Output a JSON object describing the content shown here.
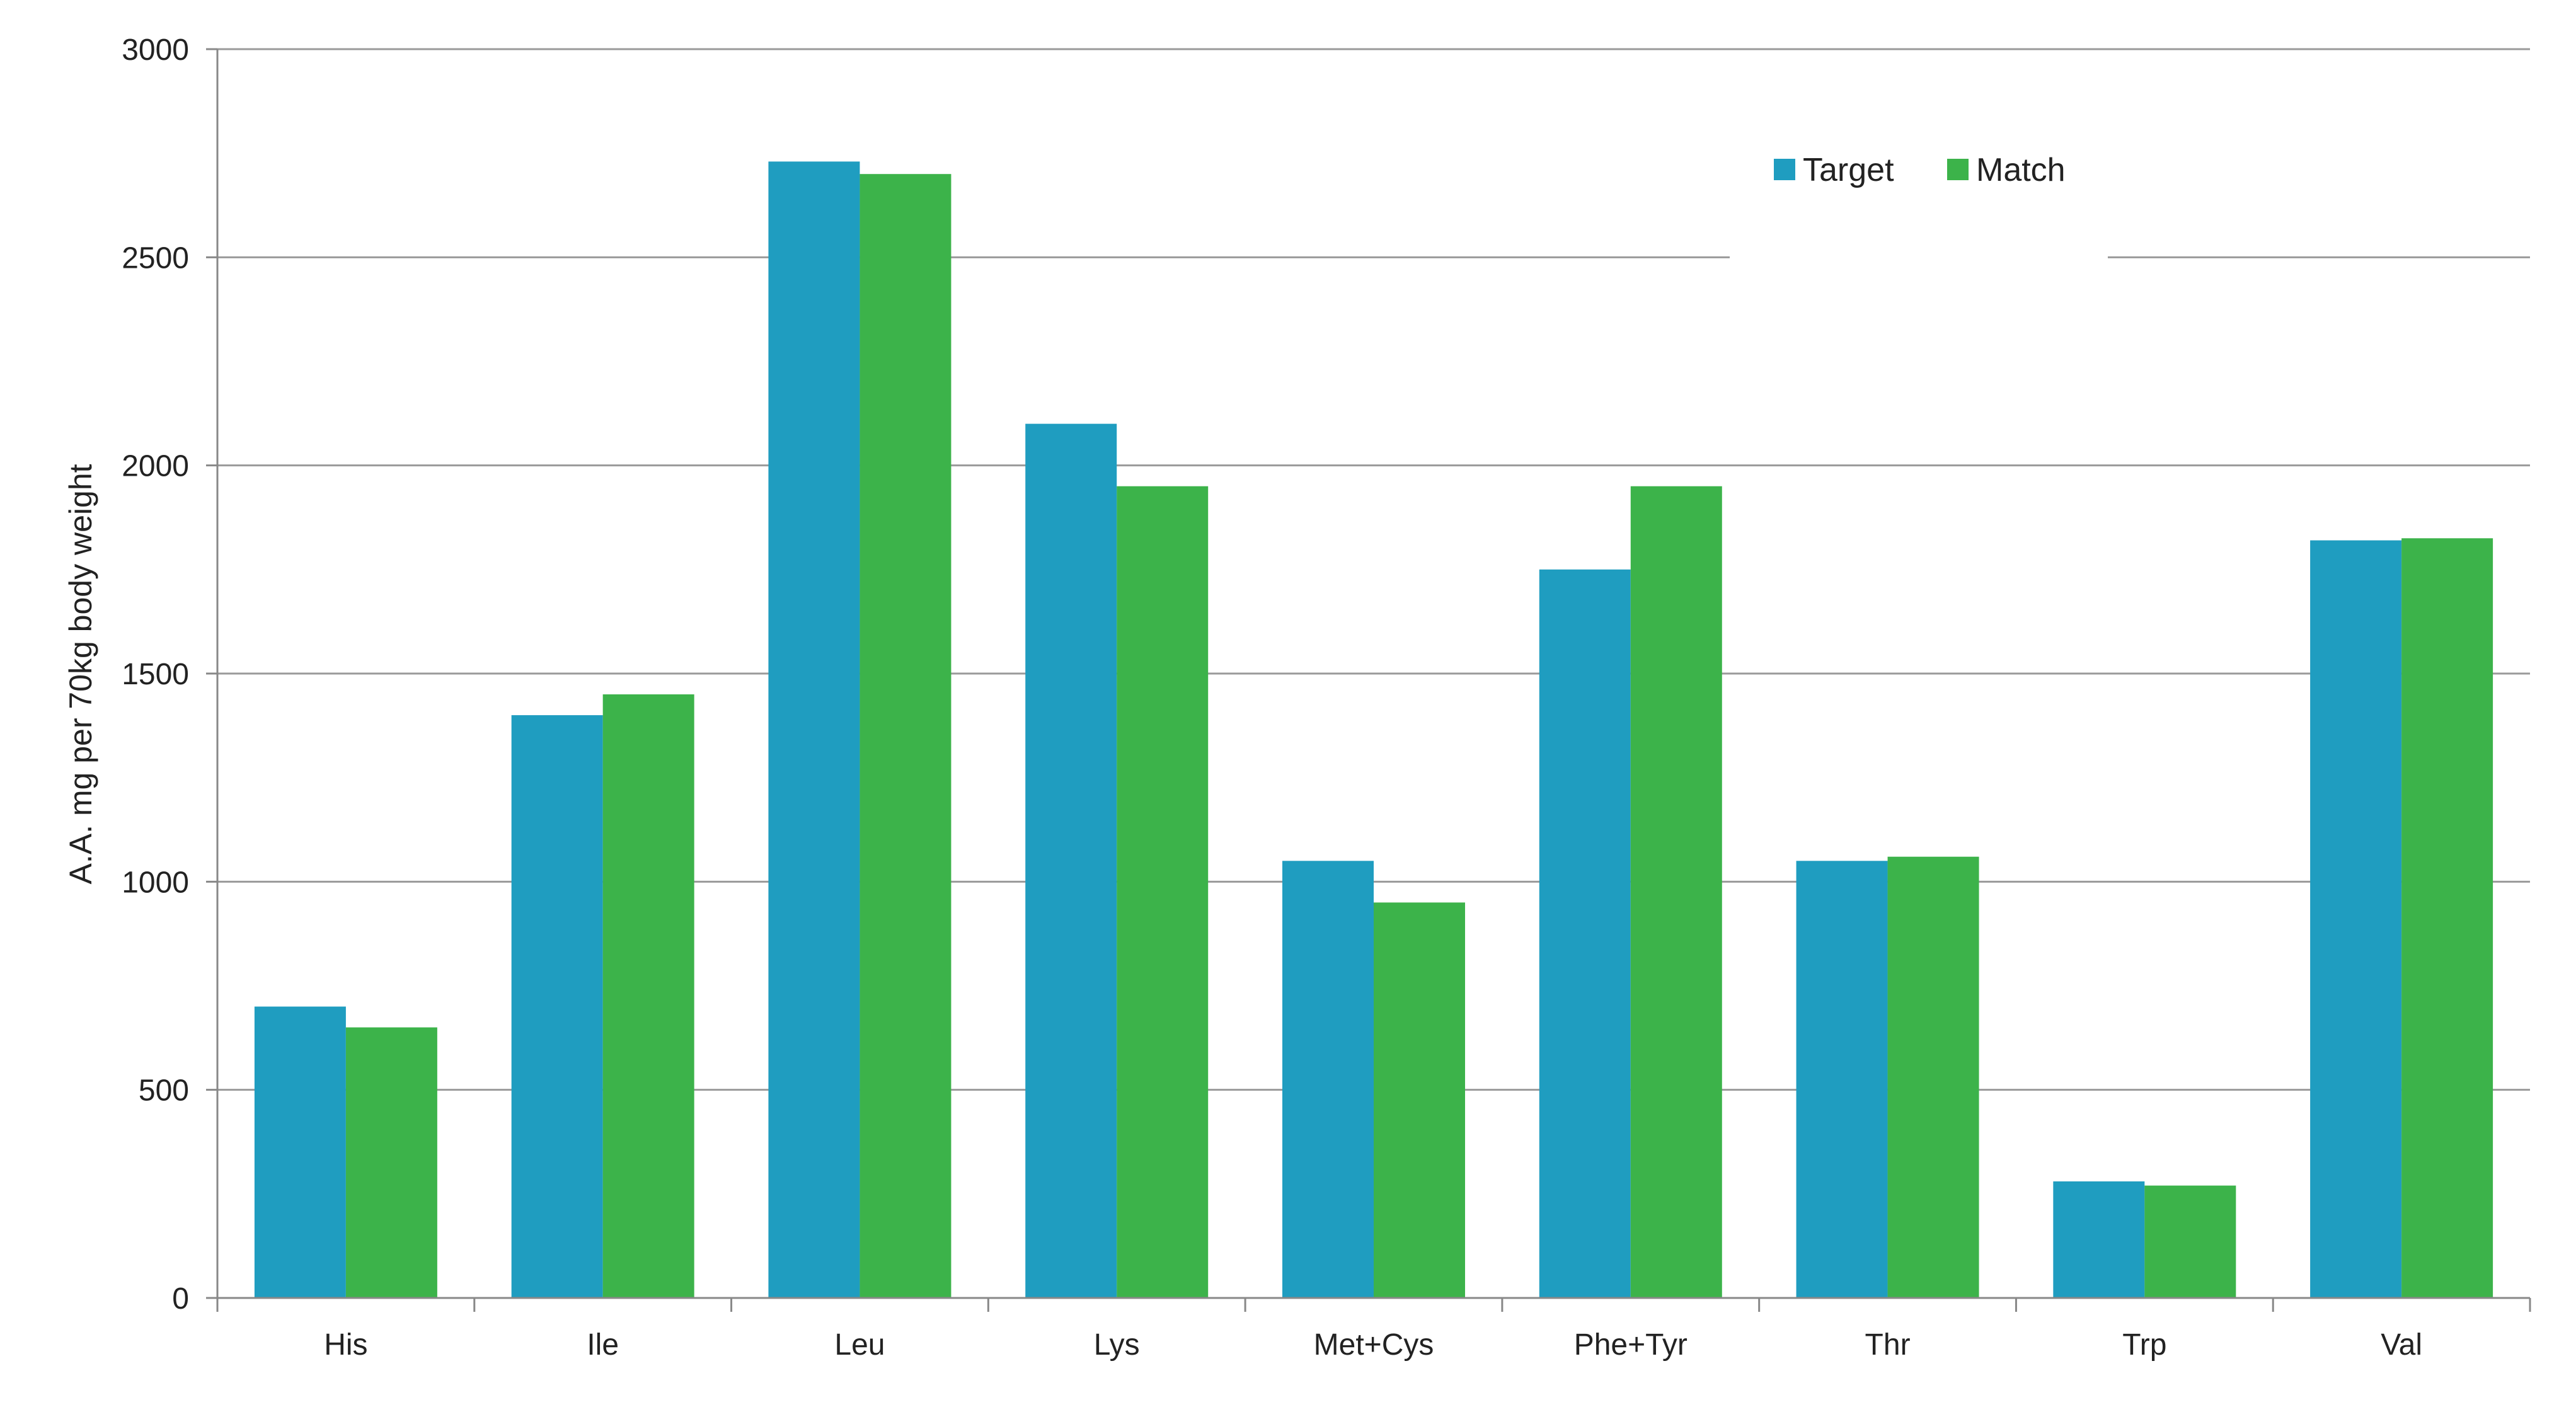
{
  "chart_data": {
    "type": "bar",
    "title": "",
    "xlabel": "",
    "ylabel": "A.A. mg per 70kg body weight",
    "ylim": [
      0,
      3000
    ],
    "yticks": [
      0,
      500,
      1000,
      1500,
      2000,
      2500,
      3000
    ],
    "grid": true,
    "legend_position": "top-right",
    "categories": [
      "His",
      "Ile",
      "Leu",
      "Lys",
      "Met+Cys",
      "Phe+Tyr",
      "Thr",
      "Trp",
      "Val"
    ],
    "series": [
      {
        "name": "Target",
        "color": "#1f9dc0",
        "values": [
          700,
          1400,
          2730,
          2100,
          1050,
          1750,
          1050,
          280,
          1820
        ]
      },
      {
        "name": "Match",
        "color": "#3cb34a",
        "values": [
          650,
          1450,
          2700,
          1950,
          950,
          1950,
          1060,
          270,
          1825
        ]
      }
    ]
  }
}
